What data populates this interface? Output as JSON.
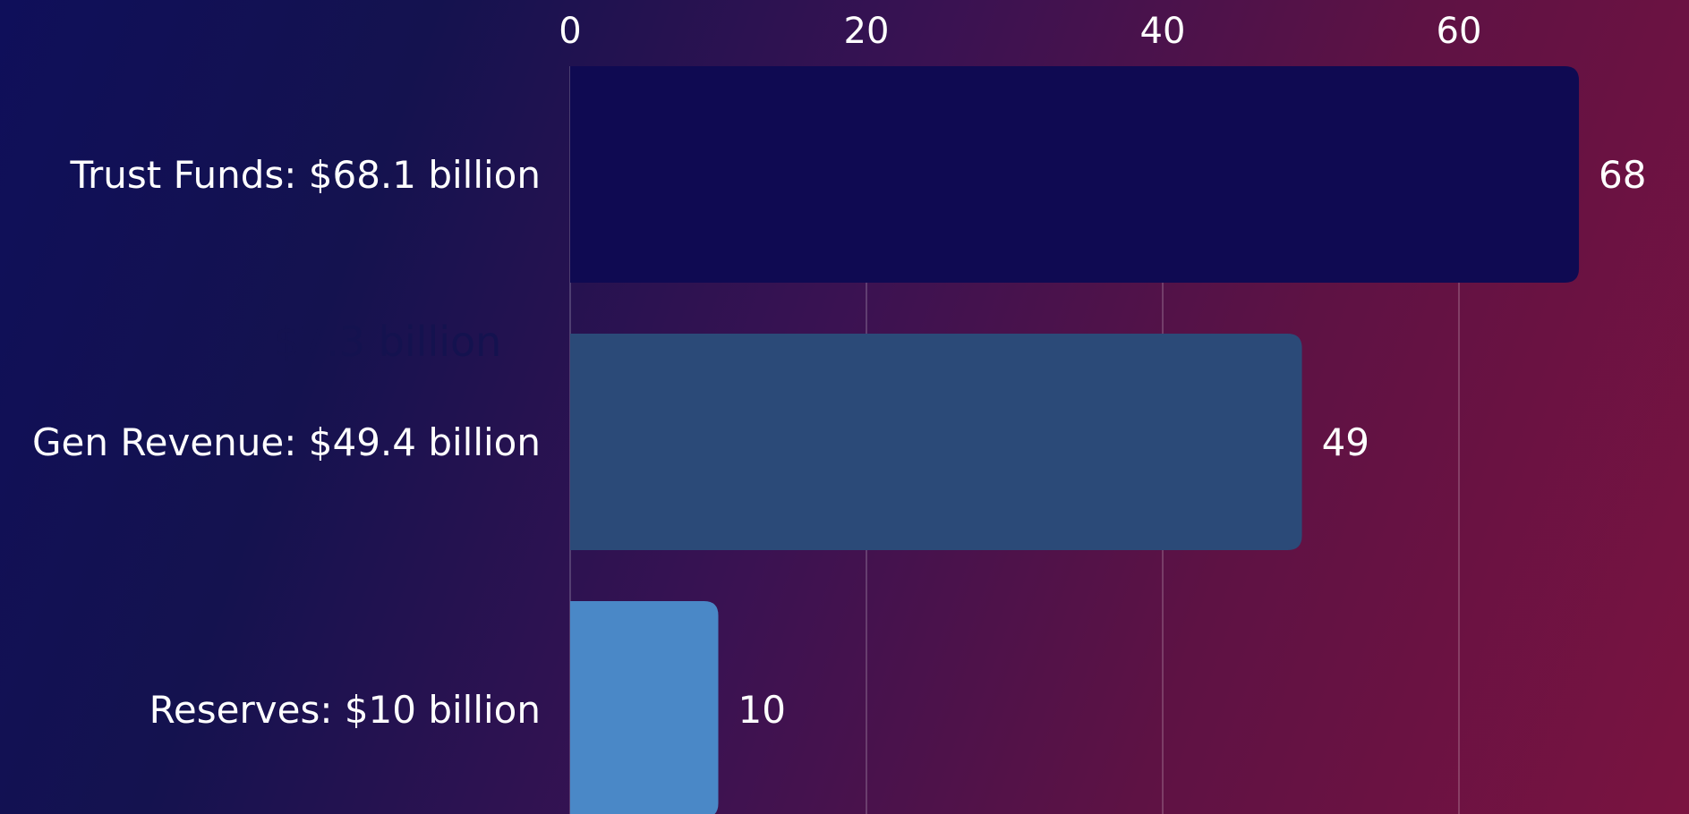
{
  "chart_data": {
    "type": "bar",
    "orientation": "horizontal",
    "categories": [
      "Trust Funds: $68.1 billion",
      "Gen Revenue: $49.4 billion",
      "Reserves: $10 billion"
    ],
    "values": [
      68.1,
      49.4,
      10
    ],
    "value_labels": [
      "68",
      "49",
      "10"
    ],
    "bar_colors": [
      "#0f0a52",
      "#2b4a78",
      "#4a88c7"
    ],
    "x_ticks": [
      0,
      20,
      40,
      60
    ],
    "x_tick_labels": [
      "0",
      "20",
      "40",
      "60"
    ],
    "xlim": [
      0,
      68
    ],
    "grid": true,
    "annotation": "$7.3 billion",
    "axis_position": "top"
  },
  "colors": {
    "text": "#ffffff",
    "grid": "rgba(255,255,255,0.25)",
    "annotation": "#14124f"
  }
}
